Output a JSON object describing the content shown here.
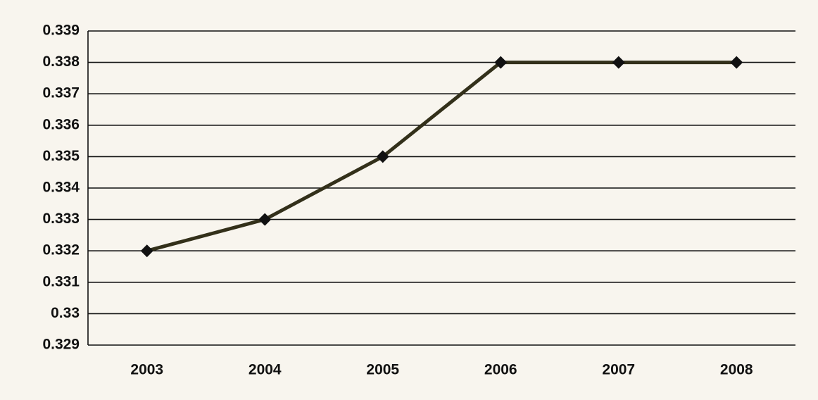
{
  "chart_data": {
    "type": "line",
    "categories": [
      "2003",
      "2004",
      "2005",
      "2006",
      "2007",
      "2008"
    ],
    "values": [
      0.332,
      0.333,
      0.335,
      0.338,
      0.338,
      0.338
    ],
    "color": "#33301a",
    "marker_color": "#111111",
    "ylim": [
      0.329,
      0.339
    ],
    "yticks": [
      0.329,
      0.33,
      0.331,
      0.332,
      0.333,
      0.334,
      0.335,
      0.336,
      0.337,
      0.338,
      0.339
    ],
    "grid": true
  }
}
